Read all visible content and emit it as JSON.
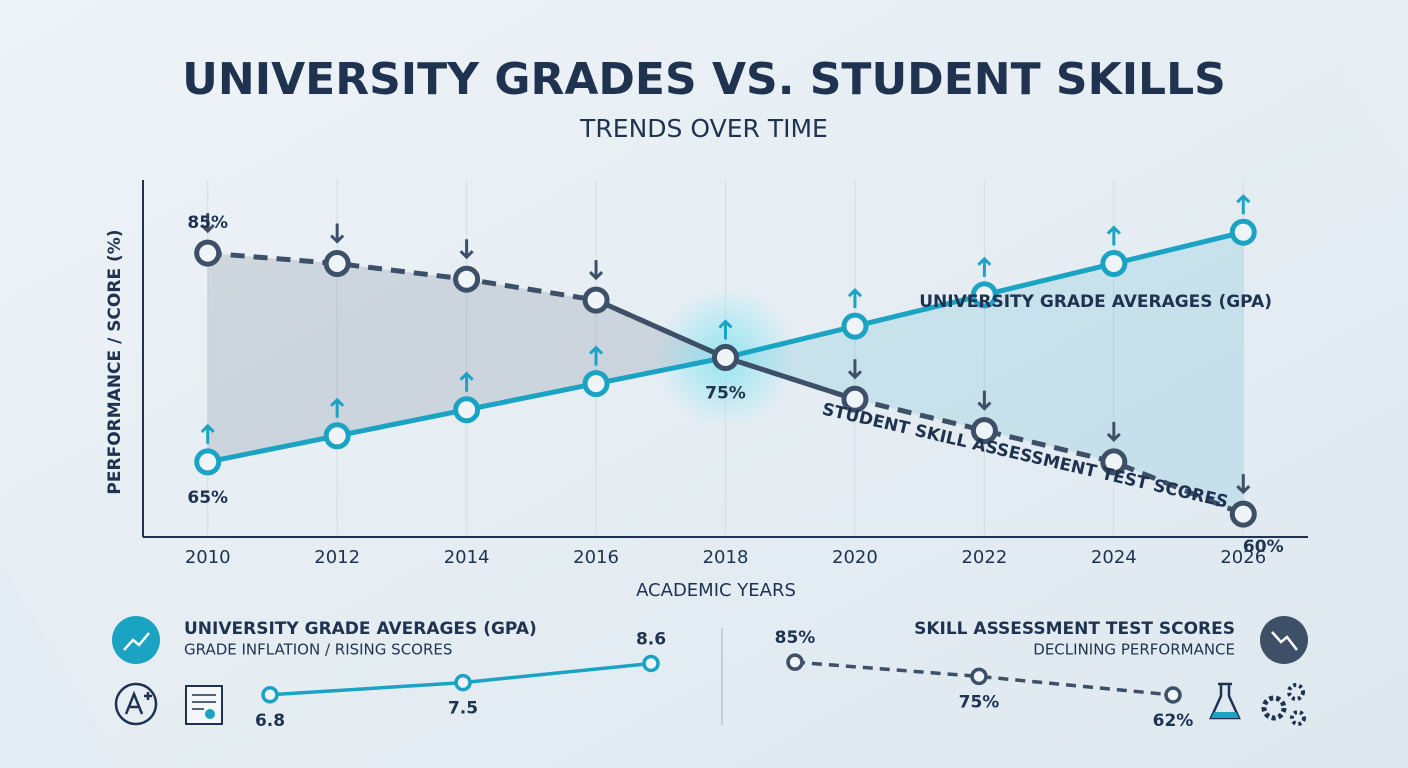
{
  "chart_data": [
    {
      "type": "line",
      "title": "UNIVERSITY GRADES VS. STUDENT SKILLS",
      "subtitle": "TRENDS OVER TIME",
      "y_label": "PERFORMANCE / SCORE (%)",
      "x_label": "ACADEMIC YEARS",
      "categories": [
        "2010",
        "2012",
        "2014",
        "2016",
        "2018",
        "2020",
        "2022",
        "2024",
        "2026"
      ],
      "ylim": [
        58,
        92
      ],
      "series": [
        {
          "name": "UNIVERSITY GRADE AVERAGES (GPA)",
          "color": "#1ba3c4",
          "values": [
            65,
            67.5,
            70,
            72.5,
            75,
            78,
            81,
            84,
            87
          ],
          "value_labels": [
            "65%",
            null,
            null,
            null,
            "75%",
            null,
            null,
            null,
            null
          ]
        },
        {
          "name": "STUDENT SKILL ASSESSMENT TEST SCORES",
          "color": "#3d5068",
          "values": [
            85,
            84,
            82.5,
            80.5,
            75,
            71,
            68,
            65,
            60
          ],
          "value_labels": [
            "85%",
            null,
            null,
            null,
            null,
            null,
            null,
            null,
            "60%"
          ]
        }
      ]
    },
    {
      "type": "line",
      "title": "UNIVERSITY GRADE AVERAGES (GPA)",
      "subtitle": "GRADE INFLATION / RISING SCORES",
      "color": "#1ba3c4",
      "ylim": [
        6.5,
        8.8
      ],
      "values": [
        6.8,
        7.5,
        8.6
      ]
    },
    {
      "type": "line",
      "title": "SKILL ASSESSMENT TEST SCORES",
      "subtitle": "DECLINING PERFORMANCE",
      "color": "#3d5068",
      "ylim": [
        55,
        90
      ],
      "values": [
        85,
        75,
        62
      ],
      "value_labels": [
        "85%",
        "75%",
        "62%"
      ]
    }
  ]
}
